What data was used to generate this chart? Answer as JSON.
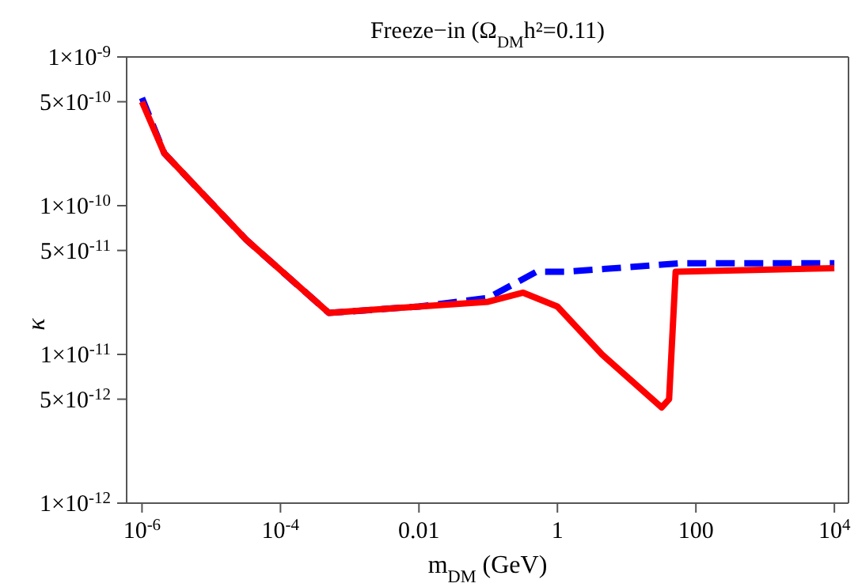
{
  "chart_data": {
    "type": "line",
    "title": "Freeze−in (Ω$_{DM}$h²=0.11)",
    "xlabel": "m$_{DM}$ (GeV)",
    "ylabel": "κ",
    "log": "xy",
    "grid": false,
    "marker": "none",
    "xlim": [
      6e-07,
      16000
    ],
    "ylim": [
      1e-12,
      1e-09
    ],
    "xticks": [
      {
        "value": 1e-06,
        "label": "10$^{-6}$"
      },
      {
        "value": 0.0001,
        "label": "10$^{-4}$"
      },
      0.01,
      1,
      100,
      {
        "value": 10000,
        "label": "10$^{4}$"
      }
    ],
    "yticks": [
      {
        "value": 1e-12,
        "label": "1×10$^{-12}$"
      },
      {
        "value": 5e-12,
        "label": "5×10$^{-12}$"
      },
      {
        "value": 1e-11,
        "label": "1×10$^{-11}$"
      },
      {
        "value": 5e-11,
        "label": "5×10$^{-11}$"
      },
      {
        "value": 1e-10,
        "label": "1×10$^{-10}$"
      },
      {
        "value": 5e-10,
        "label": "5×10$^{-10}$"
      },
      {
        "value": 1e-09,
        "label": "1×10$^{-9}$"
      }
    ],
    "series": [
      {
        "color": "#0000ff",
        "line_style": "dashed",
        "x": [
          1e-06,
          2.1e-06,
          3.2e-05,
          0.0005,
          0.01,
          0.1,
          0.5,
          1.4,
          60,
          10000
        ],
        "values": [
          5.3e-10,
          2.25e-10,
          5.9e-11,
          1.9e-11,
          2.1e-11,
          2.4e-11,
          3.6e-11,
          3.6e-11,
          4.1e-11,
          4.1e-11
        ]
      },
      {
        "color": "#ff0000",
        "line_style": "solid",
        "x": [
          1e-06,
          2.1e-06,
          3.2e-05,
          0.0005,
          0.01,
          0.1,
          0.32,
          1,
          4.4,
          32,
          41,
          51,
          10000
        ],
        "values": [
          5e-10,
          2.25e-10,
          5.9e-11,
          1.9e-11,
          2.1e-11,
          2.26e-11,
          2.6e-11,
          2.1e-11,
          1e-11,
          4.4e-12,
          5e-12,
          3.6e-11,
          3.8e-11
        ]
      }
    ]
  }
}
